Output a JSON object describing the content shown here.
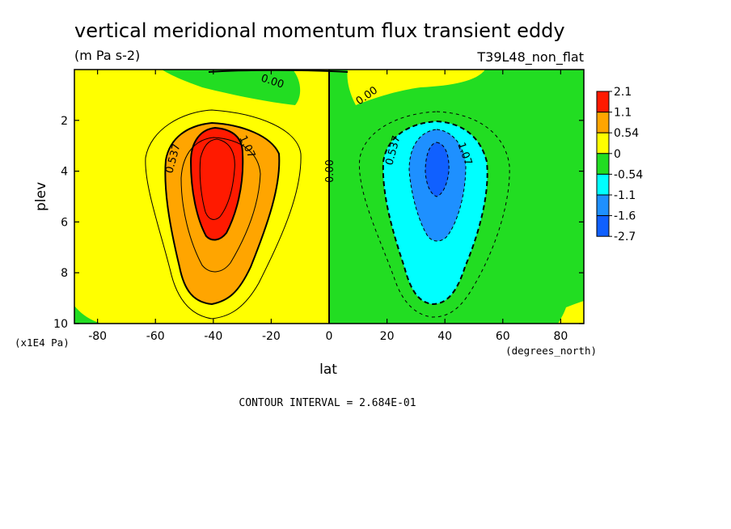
{
  "chart_data": {
    "type": "heatmap",
    "title": "vertical meridional momentum flux transient eddy",
    "units": "(m Pa s-2)",
    "experiment": "T39L48_non_flat",
    "xlabel": "lat",
    "x_units": "(degrees_north)",
    "ylabel": "plev",
    "y_units": "(x1E4 Pa)",
    "xlim": [
      -88,
      88
    ],
    "ylim": [
      10,
      0
    ],
    "x_ticks": [
      "-80",
      "-60",
      "-40",
      "-20",
      "0",
      "20",
      "40",
      "60",
      "80"
    ],
    "y_ticks": [
      "2",
      "4",
      "6",
      "8",
      "10"
    ],
    "contour_interval_text": "CONTOUR INTERVAL = 2.684E-01",
    "contour_labels": [
      "0.00",
      "0.00",
      "0.00",
      "0.537",
      "1.07",
      "0.537",
      "1.07"
    ],
    "legend": {
      "placement": "right",
      "levels": [
        "2.1",
        "1.1",
        "0.54",
        "0",
        "-0.54",
        "-1.1",
        "-1.6",
        "-2.7"
      ],
      "colors": [
        "#ff1a00",
        "#ffa500",
        "#ffff00",
        "#22dd22",
        "#00ffff",
        "#1e90ff",
        "#1060ff"
      ]
    },
    "features": [
      {
        "name": "southern-maximum",
        "lat": -38,
        "plev": 4.2,
        "value": 2.1
      },
      {
        "name": "northern-minimum",
        "lat": 37,
        "plev": 3.8,
        "value": -2.3
      }
    ]
  }
}
